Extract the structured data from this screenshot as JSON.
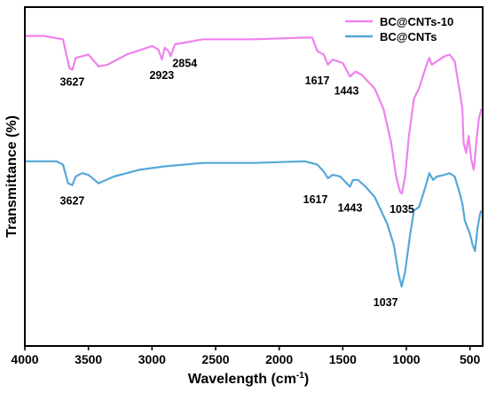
{
  "chart_data": {
    "type": "line",
    "xlabel": "Wavelength (cm",
    "xlabel_sup": "-1",
    "xlabel_suffix": ")",
    "ylabel": "Transmittance (%)",
    "xlim": [
      4000,
      400
    ],
    "x_ticks": [
      4000,
      3500,
      3000,
      2500,
      2000,
      1500,
      1000,
      500
    ],
    "y_ticks": "none",
    "grid": false,
    "legend_position": "top-right",
    "series": [
      {
        "name": "BC@CNTs-10",
        "color": "#ee82ee",
        "points": [
          [
            4000,
            0.915
          ],
          [
            3850,
            0.915
          ],
          [
            3700,
            0.905
          ],
          [
            3650,
            0.82
          ],
          [
            3627,
            0.815
          ],
          [
            3600,
            0.85
          ],
          [
            3500,
            0.86
          ],
          [
            3420,
            0.825
          ],
          [
            3350,
            0.83
          ],
          [
            3200,
            0.86
          ],
          [
            3000,
            0.885
          ],
          [
            2950,
            0.875
          ],
          [
            2923,
            0.845
          ],
          [
            2900,
            0.88
          ],
          [
            2870,
            0.87
          ],
          [
            2854,
            0.855
          ],
          [
            2820,
            0.89
          ],
          [
            2600,
            0.905
          ],
          [
            2200,
            0.905
          ],
          [
            1800,
            0.91
          ],
          [
            1740,
            0.91
          ],
          [
            1700,
            0.87
          ],
          [
            1650,
            0.86
          ],
          [
            1617,
            0.83
          ],
          [
            1580,
            0.845
          ],
          [
            1500,
            0.835
          ],
          [
            1443,
            0.795
          ],
          [
            1400,
            0.81
          ],
          [
            1350,
            0.8
          ],
          [
            1250,
            0.76
          ],
          [
            1180,
            0.7
          ],
          [
            1120,
            0.6
          ],
          [
            1080,
            0.5
          ],
          [
            1050,
            0.455
          ],
          [
            1035,
            0.45
          ],
          [
            1010,
            0.5
          ],
          [
            980,
            0.62
          ],
          [
            940,
            0.73
          ],
          [
            900,
            0.76
          ],
          [
            850,
            0.82
          ],
          [
            820,
            0.85
          ],
          [
            800,
            0.83
          ],
          [
            760,
            0.84
          ],
          [
            700,
            0.855
          ],
          [
            660,
            0.86
          ],
          [
            620,
            0.84
          ],
          [
            580,
            0.75
          ],
          [
            560,
            0.7
          ],
          [
            550,
            0.6
          ],
          [
            530,
            0.57
          ],
          [
            510,
            0.62
          ],
          [
            490,
            0.55
          ],
          [
            470,
            0.52
          ],
          [
            450,
            0.6
          ],
          [
            430,
            0.67
          ],
          [
            410,
            0.7
          ]
        ]
      },
      {
        "name": "BC@CNTs",
        "color": "#56a8d8",
        "points": [
          [
            4000,
            0.545
          ],
          [
            3750,
            0.545
          ],
          [
            3700,
            0.535
          ],
          [
            3660,
            0.48
          ],
          [
            3627,
            0.475
          ],
          [
            3600,
            0.5
          ],
          [
            3550,
            0.51
          ],
          [
            3500,
            0.505
          ],
          [
            3420,
            0.48
          ],
          [
            3300,
            0.5
          ],
          [
            3100,
            0.52
          ],
          [
            2900,
            0.53
          ],
          [
            2600,
            0.54
          ],
          [
            2200,
            0.54
          ],
          [
            1800,
            0.545
          ],
          [
            1700,
            0.535
          ],
          [
            1650,
            0.515
          ],
          [
            1617,
            0.495
          ],
          [
            1580,
            0.505
          ],
          [
            1520,
            0.5
          ],
          [
            1443,
            0.47
          ],
          [
            1420,
            0.49
          ],
          [
            1380,
            0.49
          ],
          [
            1320,
            0.47
          ],
          [
            1250,
            0.44
          ],
          [
            1150,
            0.36
          ],
          [
            1100,
            0.3
          ],
          [
            1060,
            0.21
          ],
          [
            1037,
            0.175
          ],
          [
            1010,
            0.22
          ],
          [
            970,
            0.33
          ],
          [
            940,
            0.4
          ],
          [
            900,
            0.41
          ],
          [
            850,
            0.47
          ],
          [
            820,
            0.51
          ],
          [
            790,
            0.49
          ],
          [
            760,
            0.5
          ],
          [
            700,
            0.505
          ],
          [
            660,
            0.51
          ],
          [
            620,
            0.5
          ],
          [
            580,
            0.45
          ],
          [
            560,
            0.42
          ],
          [
            540,
            0.37
          ],
          [
            520,
            0.35
          ],
          [
            500,
            0.33
          ],
          [
            480,
            0.3
          ],
          [
            460,
            0.28
          ],
          [
            440,
            0.35
          ],
          [
            420,
            0.39
          ],
          [
            410,
            0.4
          ]
        ]
      }
    ],
    "annotations": [
      {
        "text": "3627",
        "series": 0,
        "x": 3627
      },
      {
        "text": "2923",
        "series": 0,
        "x": 2923
      },
      {
        "text": "2854",
        "series": 0,
        "x": 2854
      },
      {
        "text": "1617",
        "series": 0,
        "x": 1617
      },
      {
        "text": "1443",
        "series": 0,
        "x": 1443
      },
      {
        "text": "1035",
        "series": 0,
        "x": 1035
      },
      {
        "text": "3627",
        "series": 1,
        "x": 3627
      },
      {
        "text": "1617",
        "series": 1,
        "x": 1617
      },
      {
        "text": "1443",
        "series": 1,
        "x": 1443
      },
      {
        "text": "1037",
        "series": 1,
        "x": 1037
      }
    ]
  }
}
